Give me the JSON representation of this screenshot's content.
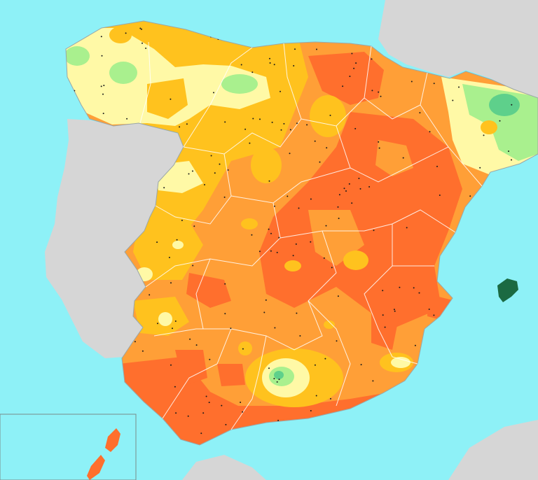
{
  "map": {
    "colors": {
      "sea": "#8ef1f7",
      "neighbor_land": "#d6d6d6",
      "boundary": "#ffffff",
      "station_dot": "#1a1a1a",
      "red_orange": "#ff6f2d",
      "orange": "#ff9f37",
      "amber": "#ffc21e",
      "pale_yellow": "#fff9a6",
      "light_green": "#a9f08e",
      "green": "#5ed08b",
      "dark_green": "#1b6a42"
    },
    "legend_levels": [
      "red_orange",
      "orange",
      "amber",
      "pale_yellow",
      "light_green",
      "green",
      "dark_green"
    ]
  }
}
